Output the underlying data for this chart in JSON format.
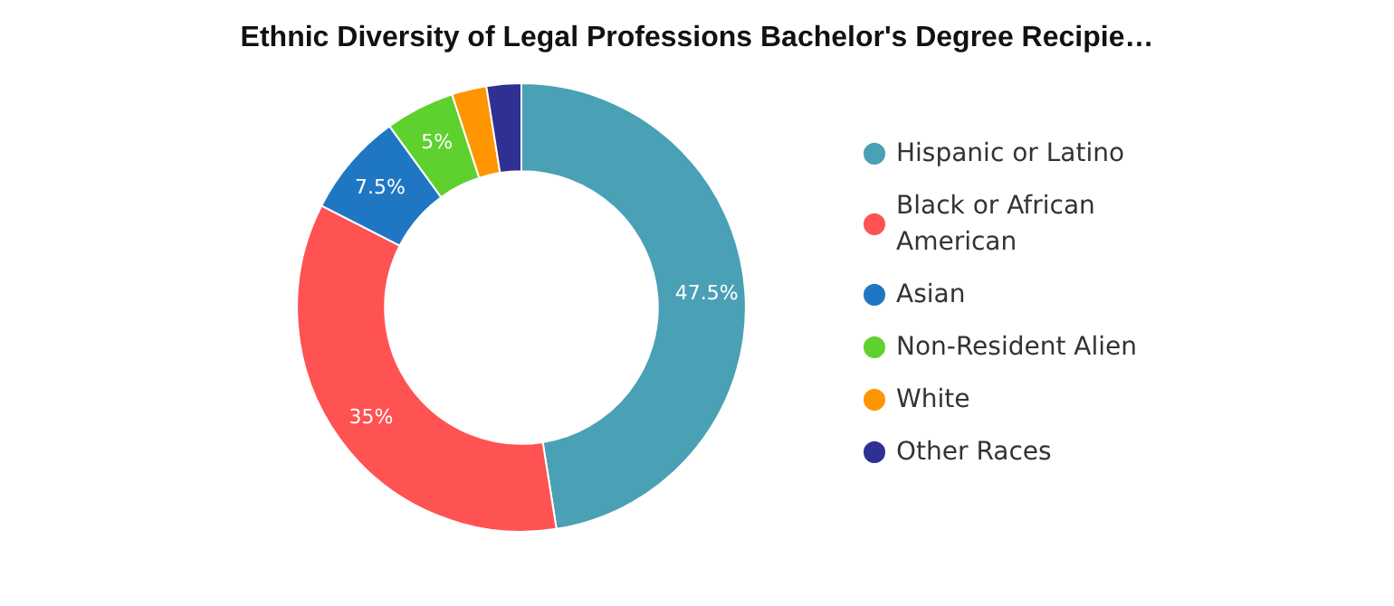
{
  "chart_data": {
    "type": "donut",
    "title": "Ethnic Diversity of Legal Professions Bachelor's Degree Recipie…",
    "categories": [
      "Hispanic or Latino",
      "Black or African American",
      "Asian",
      "Non-Resident Alien",
      "White",
      "Other Races"
    ],
    "values": [
      47.5,
      35,
      7.5,
      5,
      2.5,
      2.5
    ],
    "colors": [
      "#4aa0b5",
      "#ff5252",
      "#1f77c4",
      "#5fd12e",
      "#ff9500",
      "#2e3192"
    ],
    "value_labels": [
      "47.5%",
      "35%",
      "7.5%",
      "5%",
      null,
      null
    ],
    "legend": "right"
  }
}
